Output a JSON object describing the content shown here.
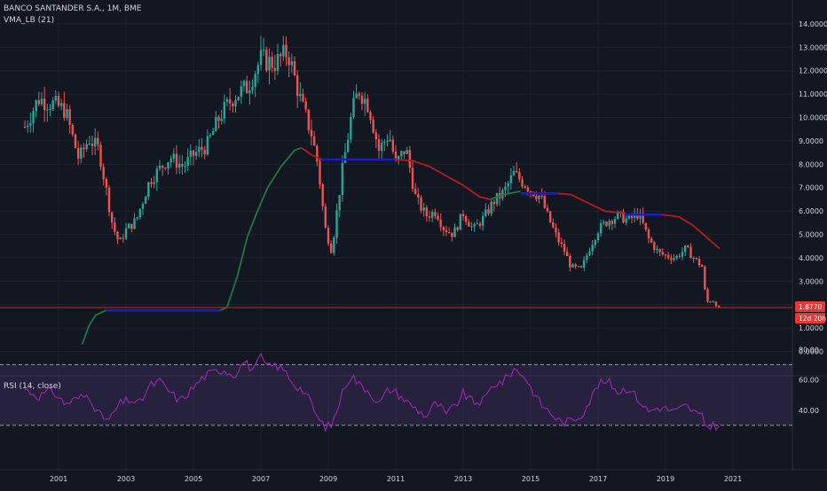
{
  "header": {
    "symbol": "BANCO SANTANDER S.A., 1M, BME",
    "indicator": "VMA_LB (21)",
    "rsi_label": "RSI (14, close)"
  },
  "price_tags": {
    "last_price": "1.8770",
    "countdown": "12d 20h"
  },
  "colors": {
    "background": "#131722",
    "grid": "#1e222d",
    "up": "#26a69a",
    "down": "#ef5350",
    "vma_up": "#1b7a3e",
    "vma_down": "#b71c1c",
    "vma_flat": "#1a1ad6",
    "last_line": "#c62828",
    "rsi_line": "#9c27b0",
    "rsi_band": "#7e57c2"
  },
  "chart_data": [
    {
      "type": "candlestick",
      "title": "BANCO SANTANDER S.A., 1M, BME",
      "xlabel": "",
      "ylabel": "",
      "x_ticks": [
        "2001",
        "2003",
        "2005",
        "2007",
        "2009",
        "2011",
        "2013",
        "2015",
        "2017",
        "2019",
        "2021"
      ],
      "x_range": [
        2000.0,
        2021.8
      ],
      "y_ticks": [
        "0.0000",
        "1.0000",
        "2.0000",
        "3.0000",
        "4.0000",
        "5.0000",
        "6.0000",
        "7.0000",
        "8.0000",
        "9.0000",
        "10.0000",
        "11.0000",
        "12.0000",
        "13.0000",
        "14.0000"
      ],
      "ylim": [
        -0.6,
        14.2
      ],
      "grid": true,
      "close_path": [
        [
          2000.0,
          9.6
        ],
        [
          2000.4,
          10.8
        ],
        [
          2000.8,
          10.6
        ],
        [
          2001.2,
          10.3
        ],
        [
          2001.6,
          8.2
        ],
        [
          2001.9,
          9.1
        ],
        [
          2002.2,
          8.6
        ],
        [
          2002.6,
          5.4
        ],
        [
          2002.8,
          4.6
        ],
        [
          2003.0,
          5.2
        ],
        [
          2003.3,
          5.6
        ],
        [
          2003.7,
          7.3
        ],
        [
          2004.0,
          7.8
        ],
        [
          2004.3,
          8.3
        ],
        [
          2004.7,
          7.9
        ],
        [
          2005.0,
          8.4
        ],
        [
          2005.4,
          8.8
        ],
        [
          2005.8,
          10.1
        ],
        [
          2006.2,
          10.9
        ],
        [
          2006.6,
          11.3
        ],
        [
          2007.0,
          12.5
        ],
        [
          2007.4,
          12.3
        ],
        [
          2007.8,
          12.8
        ],
        [
          2008.0,
          11.7
        ],
        [
          2008.2,
          10.6
        ],
        [
          2008.5,
          9.3
        ],
        [
          2008.7,
          7.9
        ],
        [
          2008.9,
          5.3
        ],
        [
          2009.1,
          4.3
        ],
        [
          2009.4,
          7.6
        ],
        [
          2009.7,
          10.2
        ],
        [
          2009.9,
          11.2
        ],
        [
          2010.2,
          10.5
        ],
        [
          2010.5,
          8.6
        ],
        [
          2010.8,
          9.3
        ],
        [
          2011.0,
          8.0
        ],
        [
          2011.3,
          8.7
        ],
        [
          2011.6,
          6.5
        ],
        [
          2011.9,
          5.8
        ],
        [
          2012.2,
          6.0
        ],
        [
          2012.4,
          5.3
        ],
        [
          2012.7,
          5.0
        ],
        [
          2013.0,
          5.9
        ],
        [
          2013.3,
          5.2
        ],
        [
          2013.6,
          5.7
        ],
        [
          2013.9,
          6.4
        ],
        [
          2014.2,
          6.8
        ],
        [
          2014.5,
          7.6
        ],
        [
          2014.8,
          7.2
        ],
        [
          2015.0,
          6.9
        ],
        [
          2015.3,
          6.6
        ],
        [
          2015.5,
          5.8
        ],
        [
          2015.8,
          4.8
        ],
        [
          2016.0,
          4.3
        ],
        [
          2016.2,
          3.6
        ],
        [
          2016.5,
          3.5
        ],
        [
          2016.8,
          4.6
        ],
        [
          2017.0,
          5.2
        ],
        [
          2017.3,
          5.6
        ],
        [
          2017.6,
          5.8
        ],
        [
          2017.9,
          5.6
        ],
        [
          2018.2,
          5.9
        ],
        [
          2018.5,
          4.8
        ],
        [
          2018.8,
          4.2
        ],
        [
          2019.0,
          4.1
        ],
        [
          2019.3,
          4.0
        ],
        [
          2019.6,
          4.4
        ],
        [
          2019.9,
          3.9
        ],
        [
          2020.1,
          3.6
        ],
        [
          2020.2,
          2.1
        ],
        [
          2020.4,
          2.2
        ],
        [
          2020.6,
          1.85
        ]
      ],
      "last_value": 1.877
    },
    {
      "type": "line",
      "title": "VMA_LB (21)",
      "series": [
        {
          "name": "VMA_LB (21)",
          "segments": [
            {
              "trend": "up",
              "points": [
                [
                  2001.7,
                  0.3
                ],
                [
                  2001.9,
                  1.1
                ],
                [
                  2002.1,
                  1.55
                ],
                [
                  2002.4,
                  1.75
                ]
              ]
            },
            {
              "trend": "flat",
              "points": [
                [
                  2002.4,
                  1.75
                ],
                [
                  2005.8,
                  1.75
                ]
              ]
            },
            {
              "trend": "up",
              "points": [
                [
                  2005.8,
                  1.75
                ],
                [
                  2006.0,
                  1.9
                ],
                [
                  2006.3,
                  3.2
                ],
                [
                  2006.6,
                  4.9
                ],
                [
                  2006.9,
                  6.0
                ],
                [
                  2007.2,
                  7.0
                ],
                [
                  2007.6,
                  7.9
                ],
                [
                  2008.0,
                  8.6
                ],
                [
                  2008.2,
                  8.7
                ]
              ]
            },
            {
              "trend": "down",
              "points": [
                [
                  2008.2,
                  8.7
                ],
                [
                  2008.5,
                  8.4
                ],
                [
                  2008.8,
                  8.2
                ]
              ]
            },
            {
              "trend": "flat",
              "points": [
                [
                  2008.8,
                  8.2
                ],
                [
                  2011.0,
                  8.2
                ]
              ]
            },
            {
              "trend": "down",
              "points": [
                [
                  2011.0,
                  8.2
                ],
                [
                  2011.5,
                  8.15
                ],
                [
                  2012.0,
                  7.9
                ],
                [
                  2012.5,
                  7.5
                ],
                [
                  2013.0,
                  7.1
                ],
                [
                  2013.5,
                  6.6
                ],
                [
                  2013.8,
                  6.5
                ]
              ]
            },
            {
              "trend": "up",
              "points": [
                [
                  2013.8,
                  6.5
                ],
                [
                  2014.2,
                  6.7
                ],
                [
                  2014.7,
                  6.85
                ]
              ]
            },
            {
              "trend": "flat",
              "points": [
                [
                  2014.7,
                  6.75
                ],
                [
                  2015.8,
                  6.75
                ]
              ]
            },
            {
              "trend": "down",
              "points": [
                [
                  2015.8,
                  6.75
                ],
                [
                  2016.2,
                  6.7
                ],
                [
                  2016.7,
                  6.35
                ],
                [
                  2017.2,
                  6.0
                ],
                [
                  2017.8,
                  5.9
                ]
              ]
            },
            {
              "trend": "flat",
              "points": [
                [
                  2017.8,
                  5.85
                ],
                [
                  2018.9,
                  5.85
                ]
              ]
            },
            {
              "trend": "down",
              "points": [
                [
                  2018.9,
                  5.85
                ],
                [
                  2019.4,
                  5.75
                ],
                [
                  2019.8,
                  5.4
                ],
                [
                  2020.2,
                  4.9
                ],
                [
                  2020.6,
                  4.4
                ]
              ]
            }
          ]
        }
      ]
    },
    {
      "type": "line",
      "title": "RSI (14, close)",
      "y_ticks": [
        "40.00",
        "60.00",
        "80.00"
      ],
      "ylim": [
        23,
        83
      ],
      "bands": [
        30,
        70
      ],
      "series": [
        {
          "name": "RSI (14, close)",
          "points": [
            [
              2000.0,
              54
            ],
            [
              2000.4,
              49
            ],
            [
              2000.8,
              53
            ],
            [
              2001.2,
              44
            ],
            [
              2001.6,
              48
            ],
            [
              2001.9,
              50
            ],
            [
              2002.2,
              37
            ],
            [
              2002.5,
              33
            ],
            [
              2002.8,
              44
            ],
            [
              2003.1,
              47
            ],
            [
              2003.4,
              44
            ],
            [
              2003.7,
              56
            ],
            [
              2004.0,
              59
            ],
            [
              2004.3,
              52
            ],
            [
              2004.6,
              46
            ],
            [
              2005.0,
              55
            ],
            [
              2005.3,
              62
            ],
            [
              2005.6,
              65
            ],
            [
              2005.9,
              67
            ],
            [
              2006.2,
              63
            ],
            [
              2006.5,
              72
            ],
            [
              2006.8,
              66
            ],
            [
              2007.0,
              75
            ],
            [
              2007.2,
              68
            ],
            [
              2007.4,
              70
            ],
            [
              2007.7,
              66
            ],
            [
              2008.0,
              57
            ],
            [
              2008.3,
              52
            ],
            [
              2008.5,
              44
            ],
            [
              2008.7,
              34
            ],
            [
              2008.9,
              29
            ],
            [
              2009.1,
              30
            ],
            [
              2009.3,
              43
            ],
            [
              2009.5,
              57
            ],
            [
              2009.7,
              63
            ],
            [
              2009.9,
              57
            ],
            [
              2010.2,
              53
            ],
            [
              2010.5,
              44
            ],
            [
              2010.8,
              54
            ],
            [
              2011.0,
              52
            ],
            [
              2011.3,
              46
            ],
            [
              2011.6,
              41
            ],
            [
              2011.9,
              36
            ],
            [
              2012.2,
              45
            ],
            [
              2012.5,
              37
            ],
            [
              2012.8,
              44
            ],
            [
              2013.0,
              51
            ],
            [
              2013.3,
              45
            ],
            [
              2013.6,
              46
            ],
            [
              2013.9,
              57
            ],
            [
              2014.2,
              59
            ],
            [
              2014.5,
              67
            ],
            [
              2014.8,
              63
            ],
            [
              2015.0,
              55
            ],
            [
              2015.3,
              44
            ],
            [
              2015.6,
              38
            ],
            [
              2015.9,
              32
            ],
            [
              2016.2,
              33
            ],
            [
              2016.5,
              37
            ],
            [
              2016.8,
              48
            ],
            [
              2017.0,
              57
            ],
            [
              2017.3,
              59
            ],
            [
              2017.6,
              52
            ],
            [
              2017.9,
              55
            ],
            [
              2018.2,
              47
            ],
            [
              2018.5,
              39
            ],
            [
              2018.8,
              42
            ],
            [
              2019.0,
              41
            ],
            [
              2019.3,
              39
            ],
            [
              2019.6,
              43
            ],
            [
              2019.9,
              38
            ],
            [
              2020.1,
              35
            ],
            [
              2020.2,
              29
            ],
            [
              2020.4,
              30
            ],
            [
              2020.6,
              30
            ]
          ]
        }
      ]
    }
  ]
}
